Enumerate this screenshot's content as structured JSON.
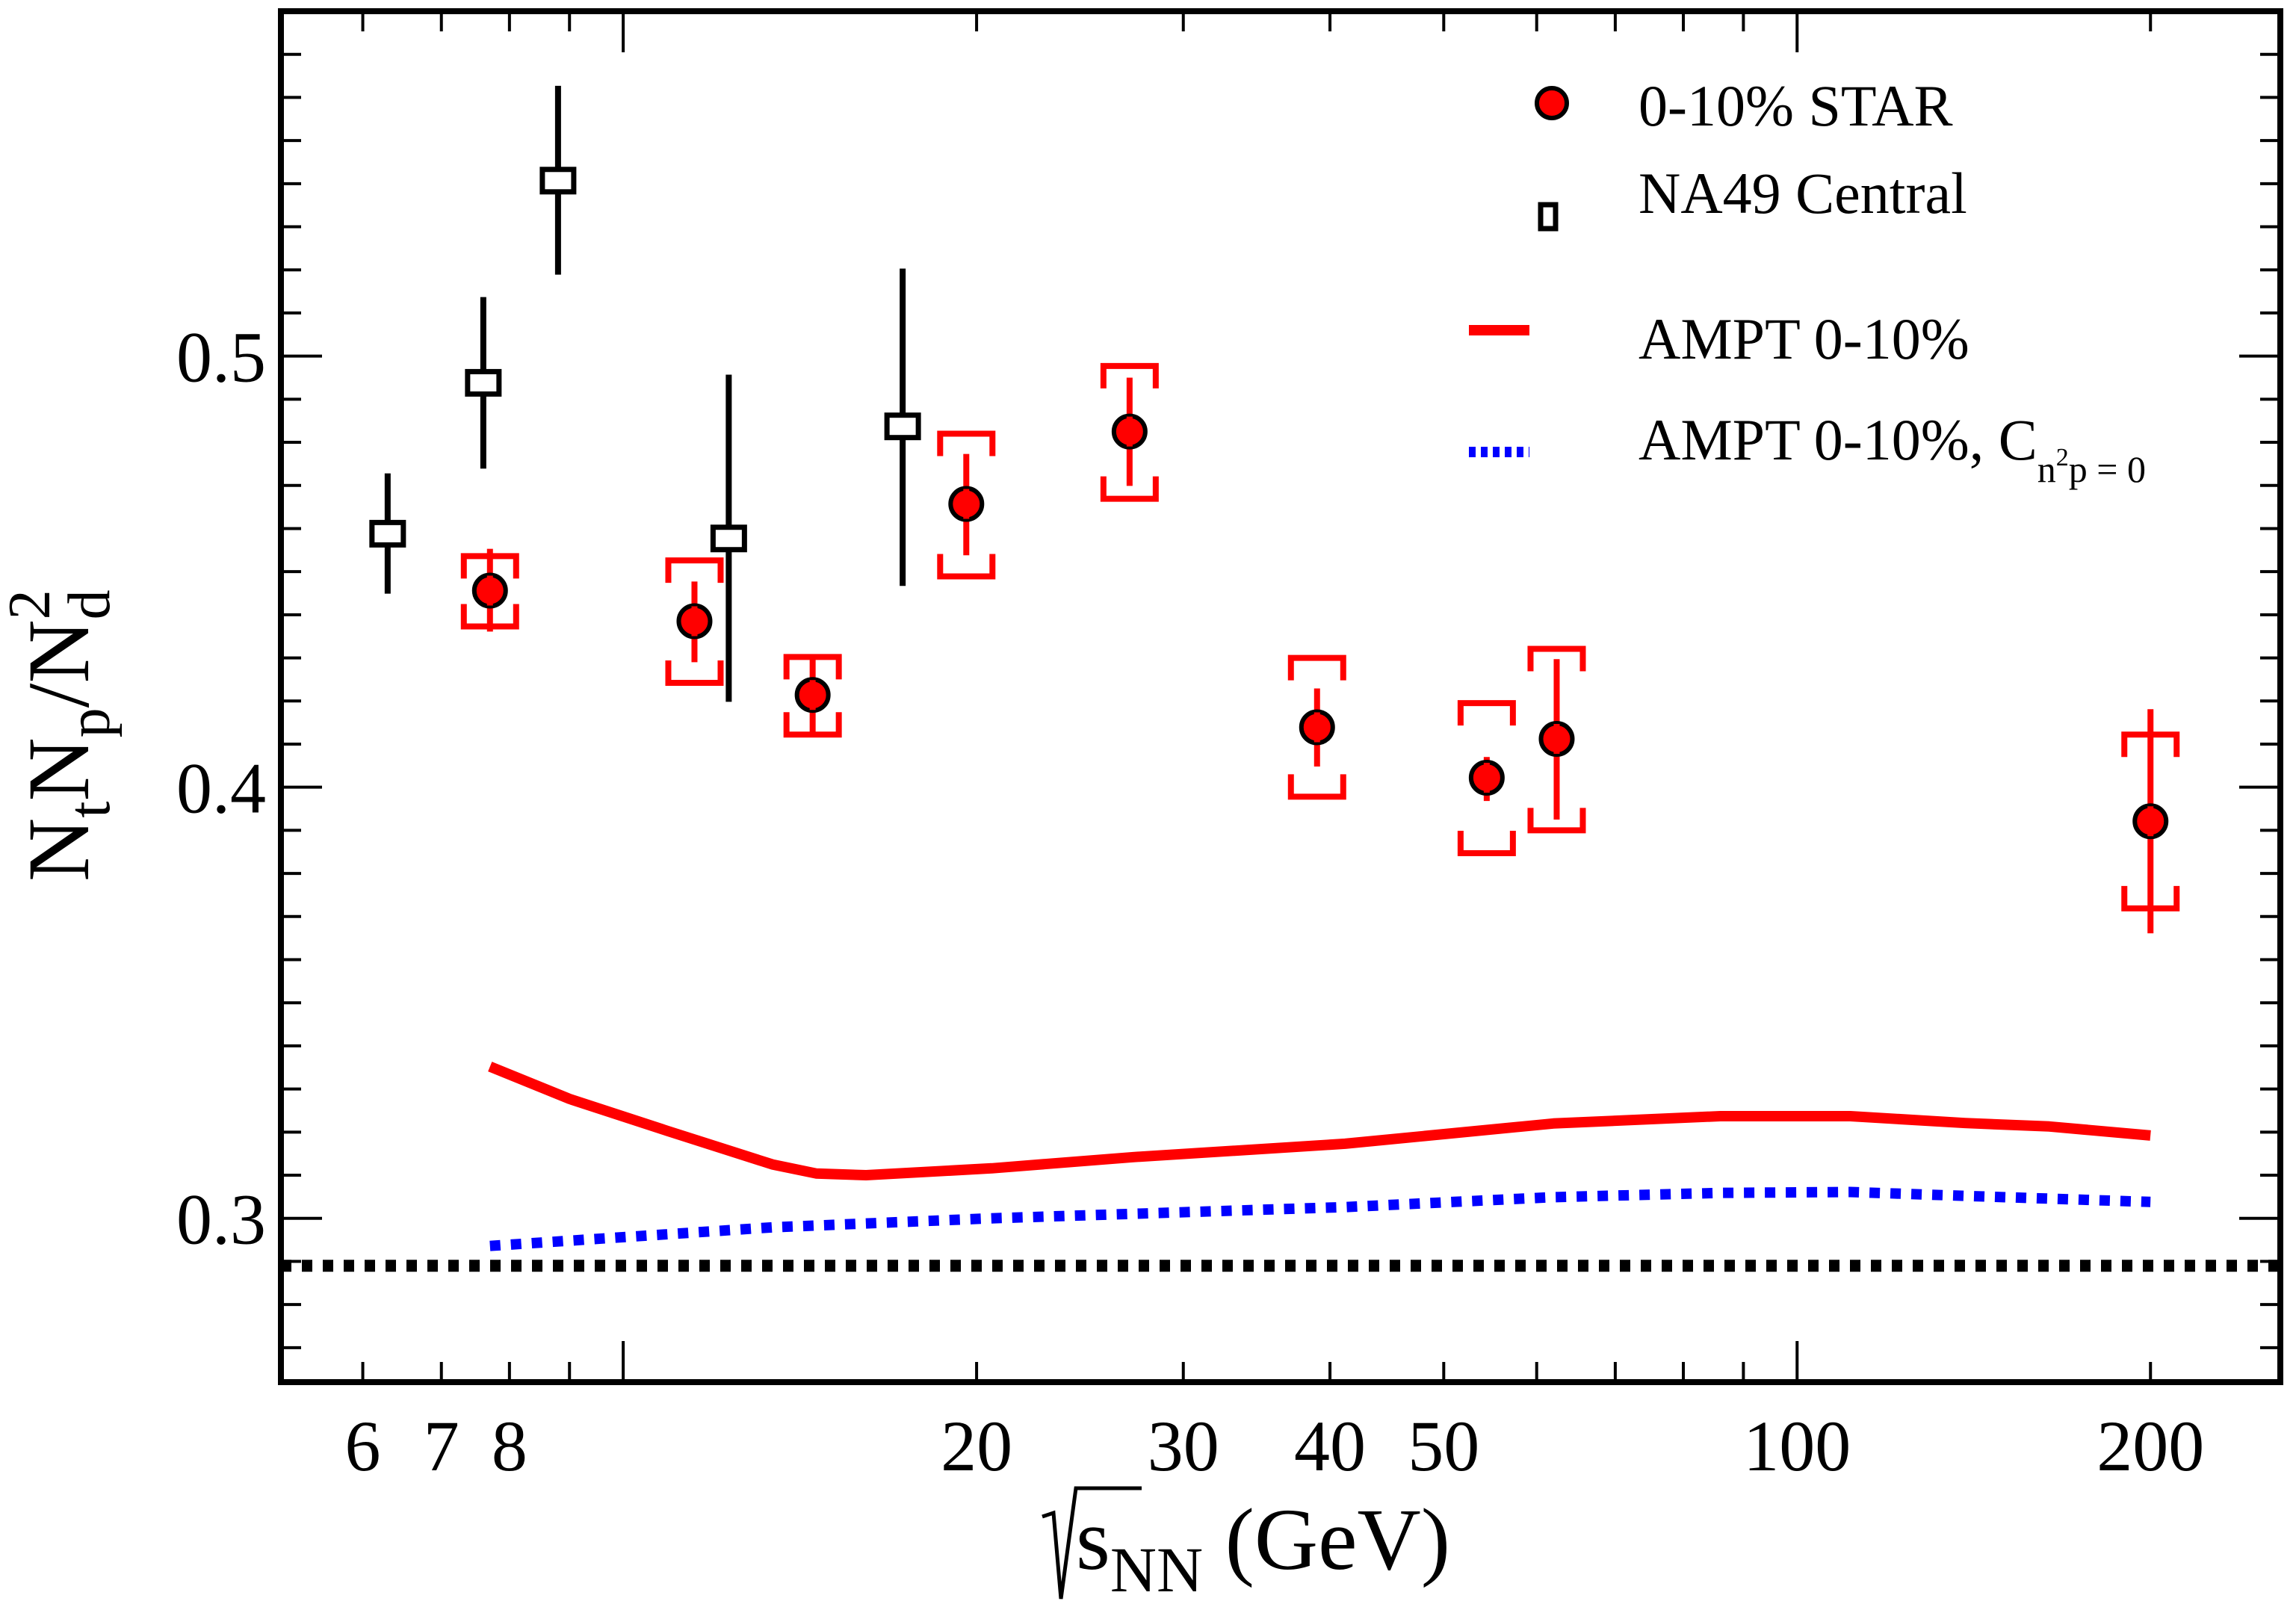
{
  "chart_data": {
    "type": "scatter",
    "title": "",
    "xlabel": "√s_NN (GeV)",
    "xlabel_parts": {
      "sqrt_symbol": "√",
      "var": "s",
      "sub": "NN",
      "unit": " (GeV)"
    },
    "ylabel": "N_t N_p / N_d^2",
    "ylabel_parts": {
      "n1": "N",
      "sub1": "t",
      "n2": "N",
      "sub2": "p",
      "slash": "/",
      "n3": "N",
      "sub3": "d",
      "sup3": "2"
    },
    "xscale": "log",
    "xlim": [
      5.11,
      258
    ],
    "ylim": [
      0.262,
      0.58
    ],
    "grid": false,
    "legend_position": "top-right",
    "x_ticks": {
      "major": [
        10,
        100
      ],
      "minor": [
        6,
        7,
        8,
        9,
        20,
        30,
        40,
        50,
        60,
        70,
        80,
        90,
        200
      ],
      "labels": [
        {
          "value": 6,
          "text": "6"
        },
        {
          "value": 7,
          "text": "7"
        },
        {
          "value": 8,
          "text": "8"
        },
        {
          "value": 20,
          "text": "20"
        },
        {
          "value": 30,
          "text": "30"
        },
        {
          "value": 40,
          "text": "40"
        },
        {
          "value": 50,
          "text": "50"
        },
        {
          "value": 100,
          "text": "100"
        },
        {
          "value": 200,
          "text": "200"
        }
      ]
    },
    "y_ticks": {
      "major": [
        0.3,
        0.4,
        0.5
      ],
      "minor_step": 0.02,
      "labels": [
        {
          "value": 0.3,
          "text": "0.3"
        },
        {
          "value": 0.4,
          "text": "0.4"
        },
        {
          "value": 0.5,
          "text": "0.5"
        }
      ]
    },
    "series": [
      {
        "name": "0-10% STAR",
        "kind": "markers",
        "marker": "circle",
        "color": "#ff0000",
        "edge_color": "#000000",
        "points": [
          {
            "x": 7.7,
            "y": 0.4456,
            "stat": [
              0.4361,
              0.4553
            ],
            "sys": [
              0.4373,
              0.4536
            ]
          },
          {
            "x": 11.5,
            "y": 0.4385,
            "stat": [
              0.429,
              0.4477
            ],
            "sys": [
              0.4242,
              0.4526
            ]
          },
          {
            "x": 14.5,
            "y": 0.4214,
            "stat": [
              0.4119,
              0.4306
            ],
            "sys": [
              0.4122,
              0.4302
            ]
          },
          {
            "x": 19.6,
            "y": 0.4657,
            "stat": [
              0.4538,
              0.4773
            ],
            "sys": [
              0.4489,
              0.482
            ]
          },
          {
            "x": 27,
            "y": 0.4825,
            "stat": [
              0.4699,
              0.495
            ],
            "sys": [
              0.4669,
              0.4977
            ]
          },
          {
            "x": 39,
            "y": 0.4139,
            "stat": [
              0.4048,
              0.4229
            ],
            "sys": [
              0.3978,
              0.43
            ]
          },
          {
            "x": 54.4,
            "y": 0.4022,
            "stat": [
              0.3968,
              0.407
            ],
            "sys": [
              0.3847,
              0.4195
            ]
          },
          {
            "x": 62.4,
            "y": 0.4112,
            "stat": [
              0.3925,
              0.4297
            ],
            "sys": [
              0.39,
              0.4321
            ]
          },
          {
            "x": 200,
            "y": 0.3921,
            "stat": [
              0.3661,
              0.4181
            ],
            "sys": [
              0.3719,
              0.4122
            ]
          }
        ]
      },
      {
        "name": "NA49 Central",
        "kind": "markers",
        "marker": "open-square",
        "color": "#000000",
        "points": [
          {
            "x": 6.3,
            "y": 0.4588,
            "err": [
              0.4449,
              0.4728
            ]
          },
          {
            "x": 7.6,
            "y": 0.4938,
            "err": [
              0.4739,
              0.5137
            ]
          },
          {
            "x": 8.8,
            "y": 0.5407,
            "err": [
              0.5189,
              0.5627
            ]
          },
          {
            "x": 12.3,
            "y": 0.4577,
            "err": [
              0.4198,
              0.4957
            ]
          },
          {
            "x": 17.3,
            "y": 0.4837,
            "err": [
              0.4467,
              0.5203
            ]
          }
        ]
      },
      {
        "name": "AMPT  0-10%",
        "kind": "line",
        "style": "solid",
        "color": "#ff0000",
        "x": [
          7.7,
          9.0,
          10.9,
          13.4,
          14.6,
          16.1,
          20.6,
          27.2,
          41.2,
          62,
          86,
          111,
          139,
          164,
          200
        ],
        "y": [
          0.3352,
          0.3277,
          0.3203,
          0.3125,
          0.3104,
          0.31,
          0.3116,
          0.3142,
          0.3173,
          0.322,
          0.3237,
          0.3237,
          0.3221,
          0.3213,
          0.3192
        ]
      },
      {
        "name": "AMPT  0-10%, C_{n²p = 0}",
        "kind": "line",
        "style": "dotted",
        "color": "#0000ff",
        "x": [
          7.7,
          13.4,
          20.6,
          41.2,
          62,
          86,
          111,
          139,
          200
        ],
        "y": [
          0.2936,
          0.2979,
          0.3,
          0.3026,
          0.3049,
          0.3059,
          0.3061,
          0.3052,
          0.3038
        ]
      },
      {
        "name": "reference line",
        "kind": "hline",
        "style": "dotted",
        "color": "#000000",
        "y": 0.289
      }
    ],
    "legend": [
      {
        "label": "0-10% STAR",
        "symbol": "red-circle"
      },
      {
        "label": "NA49 Central",
        "symbol": "open-square"
      },
      {
        "label": "AMPT  0-10%",
        "symbol": "red-solid-line"
      },
      {
        "label_main": "AMPT  0-10%, C",
        "label_sub_base": "n",
        "label_sub_sup": "2",
        "label_sub_rest": "p = 0",
        "symbol": "blue-dotted-line"
      }
    ]
  }
}
